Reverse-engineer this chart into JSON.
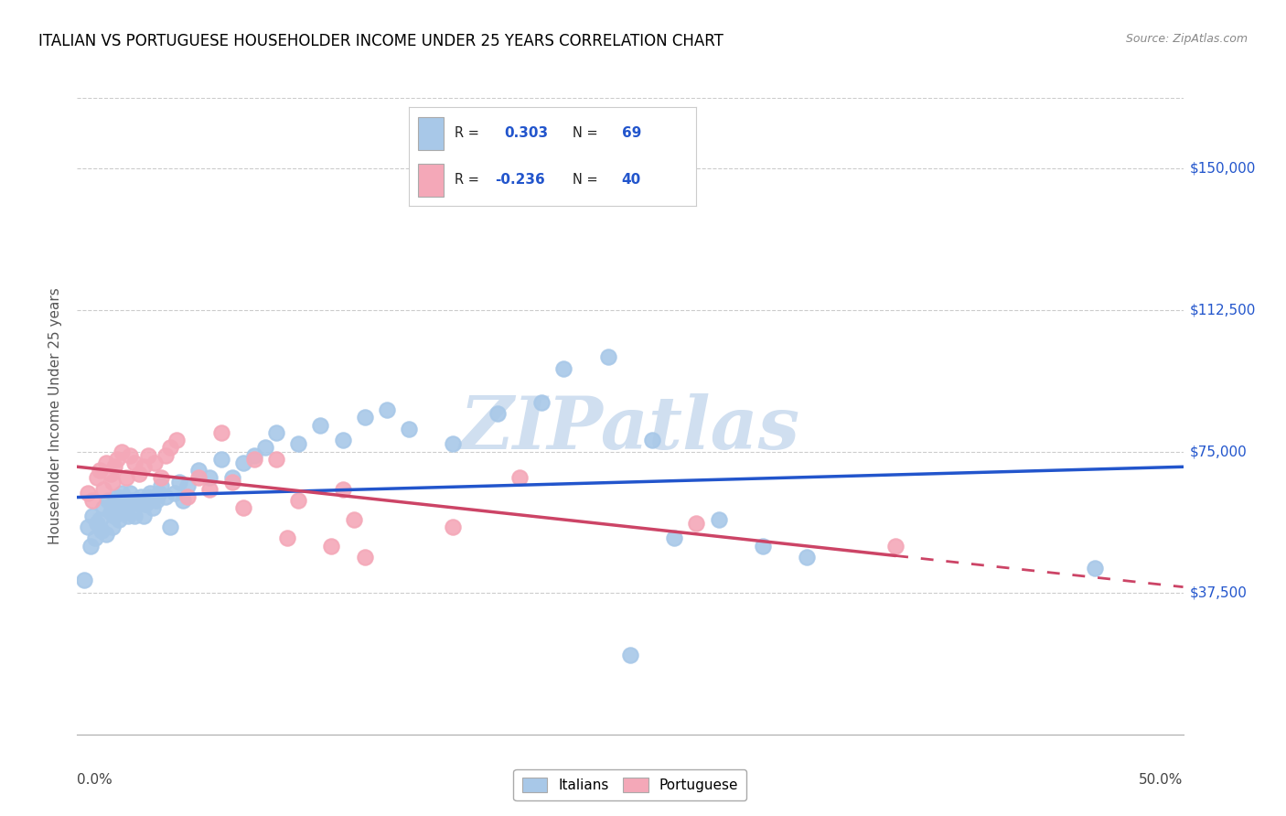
{
  "title": "ITALIAN VS PORTUGUESE HOUSEHOLDER INCOME UNDER 25 YEARS CORRELATION CHART",
  "source": "Source: ZipAtlas.com",
  "ylabel": "Householder Income Under 25 years",
  "ytick_labels": [
    "$37,500",
    "$75,000",
    "$112,500",
    "$150,000"
  ],
  "ytick_values": [
    37500,
    75000,
    112500,
    150000
  ],
  "ymin": 0,
  "ymax": 168750,
  "xmin": 0.0,
  "xmax": 0.5,
  "legend_italian_r": "0.303",
  "legend_italian_n": "69",
  "legend_portuguese_r": "-0.236",
  "legend_portuguese_n": "40",
  "italian_color": "#a8c8e8",
  "portuguese_color": "#f4a8b8",
  "italian_line_color": "#2255cc",
  "portuguese_line_color": "#cc4466",
  "watermark": "ZIPatlas",
  "watermark_color": "#d0dff0",
  "italian_scatter_x": [
    0.003,
    0.005,
    0.006,
    0.007,
    0.008,
    0.009,
    0.01,
    0.011,
    0.012,
    0.013,
    0.014,
    0.015,
    0.016,
    0.016,
    0.017,
    0.018,
    0.019,
    0.019,
    0.02,
    0.021,
    0.022,
    0.023,
    0.024,
    0.025,
    0.026,
    0.027,
    0.028,
    0.029,
    0.03,
    0.031,
    0.032,
    0.033,
    0.034,
    0.035,
    0.036,
    0.037,
    0.038,
    0.04,
    0.042,
    0.044,
    0.046,
    0.048,
    0.05,
    0.055,
    0.06,
    0.065,
    0.07,
    0.075,
    0.08,
    0.085,
    0.09,
    0.1,
    0.11,
    0.12,
    0.13,
    0.14,
    0.15,
    0.17,
    0.19,
    0.21,
    0.22,
    0.24,
    0.26,
    0.27,
    0.29,
    0.31,
    0.33,
    0.46,
    0.25
  ],
  "italian_scatter_y": [
    41000,
    55000,
    50000,
    58000,
    52000,
    56000,
    57000,
    54000,
    60000,
    53000,
    62000,
    59000,
    61000,
    55000,
    58000,
    63000,
    57000,
    60000,
    64000,
    62000,
    60000,
    58000,
    64000,
    62000,
    58000,
    62000,
    61000,
    63000,
    58000,
    61000,
    63000,
    64000,
    60000,
    63000,
    62000,
    64000,
    66000,
    63000,
    55000,
    64000,
    67000,
    62000,
    66000,
    70000,
    68000,
    73000,
    68000,
    72000,
    74000,
    76000,
    80000,
    77000,
    82000,
    78000,
    84000,
    86000,
    81000,
    77000,
    85000,
    88000,
    97000,
    100000,
    78000,
    52000,
    57000,
    50000,
    47000,
    44000,
    21000
  ],
  "portuguese_scatter_x": [
    0.005,
    0.007,
    0.009,
    0.01,
    0.012,
    0.013,
    0.015,
    0.016,
    0.017,
    0.018,
    0.02,
    0.022,
    0.024,
    0.026,
    0.028,
    0.03,
    0.032,
    0.035,
    0.038,
    0.04,
    0.042,
    0.045,
    0.05,
    0.055,
    0.06,
    0.065,
    0.07,
    0.075,
    0.08,
    0.09,
    0.095,
    0.1,
    0.115,
    0.12,
    0.125,
    0.13,
    0.17,
    0.2,
    0.28,
    0.37
  ],
  "portuguese_scatter_y": [
    64000,
    62000,
    68000,
    70000,
    65000,
    72000,
    69000,
    67000,
    71000,
    73000,
    75000,
    68000,
    74000,
    72000,
    69000,
    71000,
    74000,
    72000,
    68000,
    74000,
    76000,
    78000,
    63000,
    68000,
    65000,
    80000,
    67000,
    60000,
    73000,
    73000,
    52000,
    62000,
    50000,
    65000,
    57000,
    47000,
    55000,
    68000,
    56000,
    50000
  ]
}
